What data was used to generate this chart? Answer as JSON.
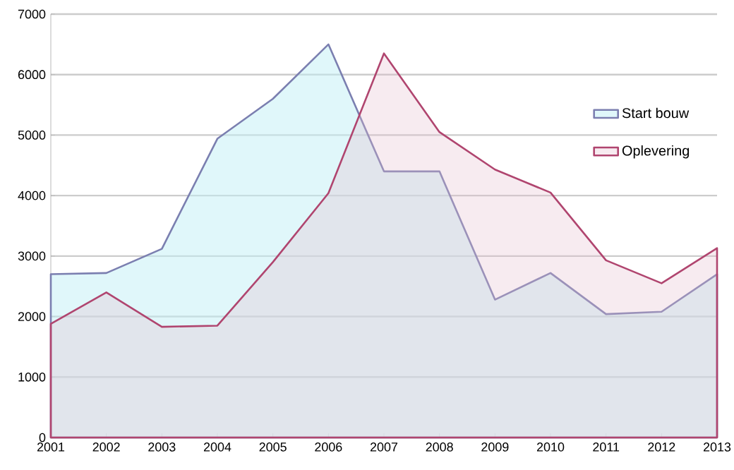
{
  "chart_data": {
    "type": "area",
    "categories": [
      "2001",
      "2002",
      "2003",
      "2004",
      "2005",
      "2006",
      "2007",
      "2008",
      "2009",
      "2010",
      "2011",
      "2012",
      "2013"
    ],
    "series": [
      {
        "name": "Start bouw",
        "color": "#7b7fb0",
        "values": [
          2700,
          2720,
          3120,
          4940,
          5600,
          6500,
          4400,
          4400,
          2280,
          2720,
          2040,
          2080,
          2700
        ]
      },
      {
        "name": "Oplevering",
        "color": "#b0456f",
        "values": [
          1880,
          2400,
          1830,
          1850,
          2900,
          4040,
          6350,
          5050,
          4430,
          4050,
          2930,
          2550,
          3130
        ]
      }
    ],
    "ylim": [
      0,
      7000
    ],
    "yticks": [
      0,
      1000,
      2000,
      3000,
      4000,
      5000,
      6000,
      7000
    ],
    "grid": "y",
    "legend": "right"
  }
}
